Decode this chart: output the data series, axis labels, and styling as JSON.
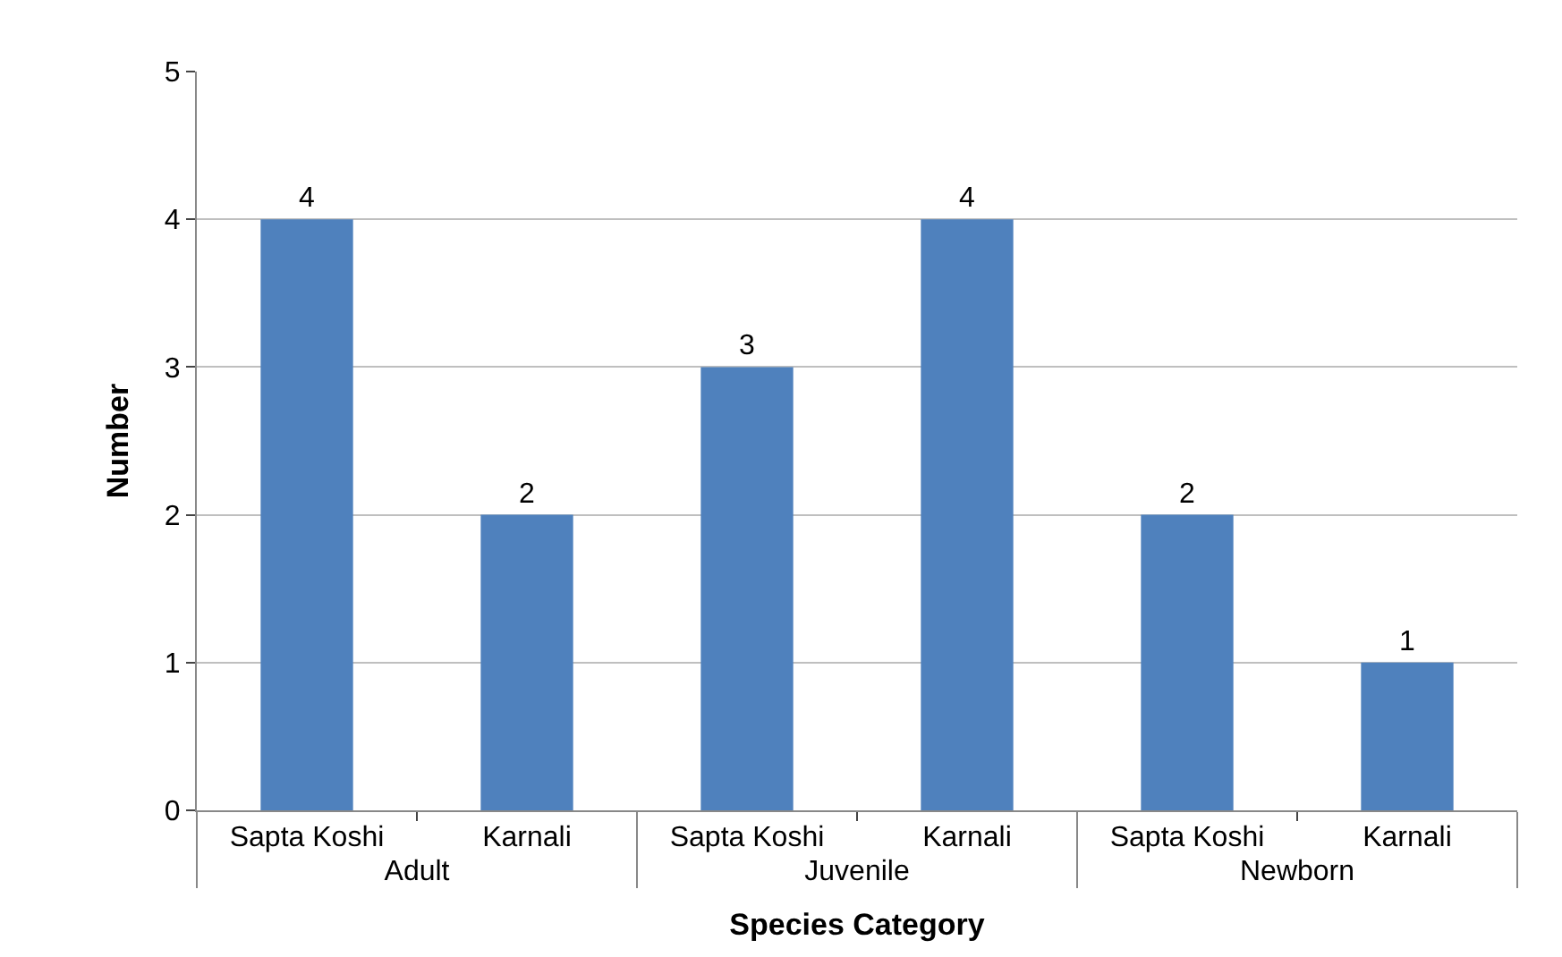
{
  "chart_data": {
    "type": "bar",
    "xlabel": "Species Category",
    "ylabel": "Number",
    "categories": [
      "Sapta Koshi",
      "Karnali",
      "Sapta Koshi",
      "Karnali",
      "Sapta Koshi",
      "Karnali"
    ],
    "annotations": [
      "Adult",
      "Juvenile",
      "Newborn"
    ],
    "values": [
      4,
      2,
      3,
      4,
      2,
      1
    ],
    "color": "#4f81bd",
    "ylim": [
      0,
      5
    ],
    "yticks": [
      0,
      1,
      2,
      3,
      4,
      5
    ],
    "grid": "y",
    "data_labels": true
  }
}
